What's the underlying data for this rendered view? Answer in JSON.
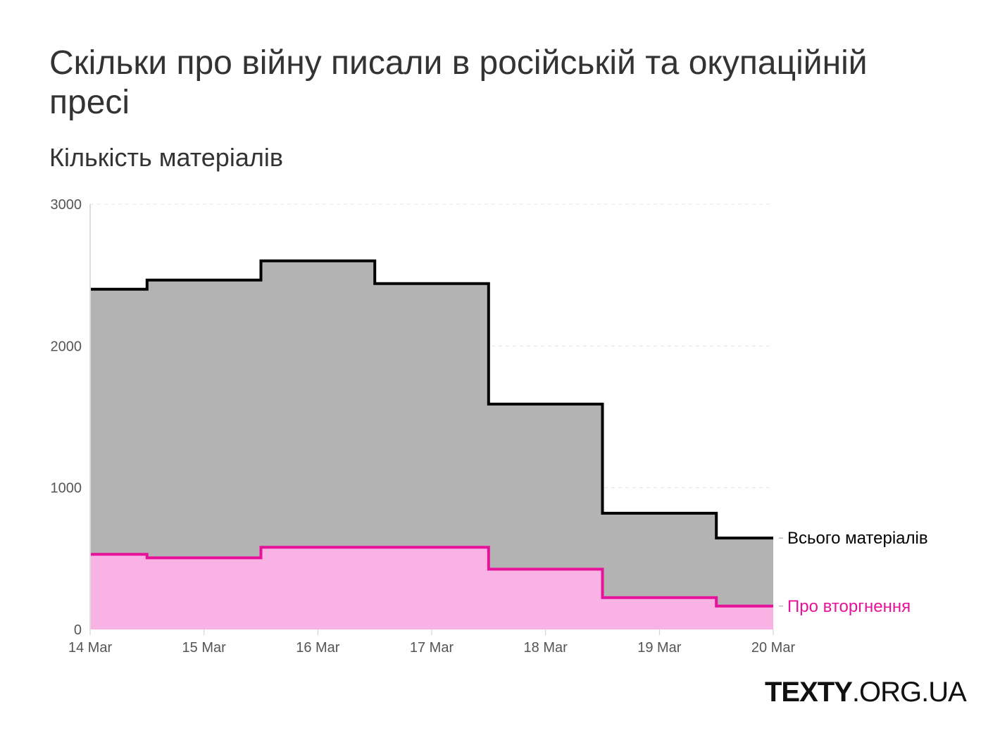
{
  "header": {
    "title": "Скільки про війну писали в російській та окупаційній пресі",
    "subtitle": "Кількість матеріалів"
  },
  "brand": {
    "bold": "TEXTY",
    "rest": ".ORG.UA"
  },
  "chart_data": {
    "type": "area",
    "step": "center",
    "x": [
      "14 Mar",
      "15 Mar",
      "16 Mar",
      "17 Mar",
      "18 Mar",
      "19 Mar",
      "20 Mar"
    ],
    "ylim": [
      0,
      3000
    ],
    "yticks": [
      0,
      1000,
      2000,
      3000
    ],
    "grid": true,
    "legend": "end-labels",
    "series": [
      {
        "name": "Всього матеріалів",
        "values": [
          2400,
          2465,
          2600,
          2440,
          1590,
          820,
          645
        ],
        "color": "#000000",
        "fill": "#b3b3b3"
      },
      {
        "name": "Про вторгнення",
        "values": [
          530,
          505,
          580,
          580,
          425,
          225,
          165
        ],
        "color": "#e6139a",
        "fill": "#f9b2e4"
      }
    ]
  }
}
